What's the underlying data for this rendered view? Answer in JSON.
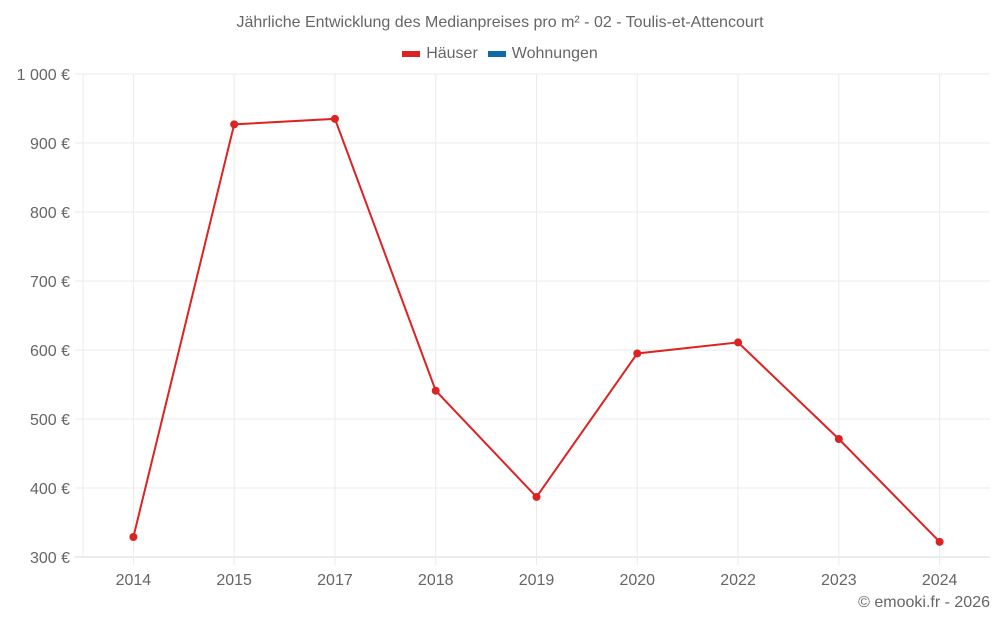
{
  "header": {
    "title": "Jährliche Entwicklung des Medianpreises pro m² - 02 - Toulis-et-Attencourt"
  },
  "legend": [
    {
      "label": "Häuser",
      "color": "#dd2222"
    },
    {
      "label": "Wohnungen",
      "color": "#0e6aa8"
    }
  ],
  "footer": {
    "credit": "© emooki.fr - 2026"
  },
  "colors": {
    "grid": "#ebebeb",
    "axis": "#d9d9d9",
    "line": "#dd2222"
  },
  "chart_data": {
    "type": "line",
    "title": "Jährliche Entwicklung des Medianpreises pro m² - 02 - Toulis-et-Attencourt",
    "xlabel": "",
    "ylabel": "",
    "categories": [
      "2014",
      "2015",
      "2017",
      "2018",
      "2019",
      "2020",
      "2022",
      "2023",
      "2024"
    ],
    "series": [
      {
        "name": "Häuser",
        "color": "#dd2222",
        "values": [
          329,
          927,
          935,
          541,
          387,
          595,
          611,
          471,
          322
        ]
      },
      {
        "name": "Wohnungen",
        "color": "#0e6aa8",
        "values": []
      }
    ],
    "ylim": [
      300,
      1000
    ],
    "yticks": [
      300,
      400,
      500,
      600,
      700,
      800,
      900,
      1000
    ],
    "ytick_labels": [
      "300 €",
      "400 €",
      "500 €",
      "600 €",
      "700 €",
      "800 €",
      "900 €",
      "1 000 €"
    ],
    "grid": true,
    "legend_position": "top"
  }
}
